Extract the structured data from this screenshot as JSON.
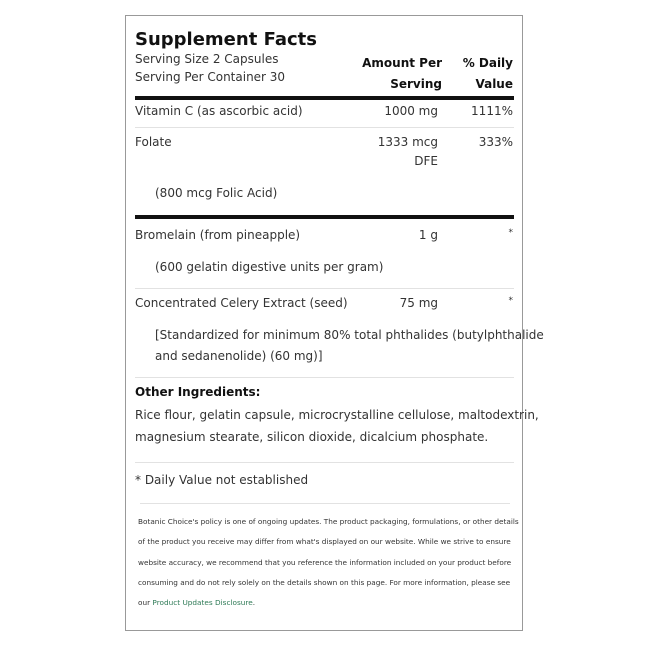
{
  "title": "Supplement Facts",
  "serving_size": "Serving Size 2 Capsules",
  "servings_per_container": "Serving Per Container 30",
  "col_amount": [
    "Amount Per",
    "Serving"
  ],
  "col_dv": [
    "% Daily",
    "Value"
  ],
  "rows": [
    {
      "name": "Vitamin C (as ascorbic acid)",
      "amount": "1000 mg",
      "dv": "1111%"
    },
    {
      "name": "Folate",
      "amount": "1333 mcg",
      "amount2": "DFE",
      "dv": "333%",
      "sub": "(800 mcg Folic Acid)"
    },
    {
      "name": "Bromelain (from pineapple)",
      "amount": "1 g",
      "dv": "*",
      "sub": "(600 gelatin digestive units per gram)"
    },
    {
      "name": "Concentrated Celery Extract (seed)",
      "amount": "75 mg",
      "dv": "*",
      "sub": "[Standardized for minimum 80% total phthalides (butylphthalide",
      "sub2": "and sedanenolide) (60 mg)]"
    }
  ],
  "other_heading": "Other Ingredients:",
  "other_lines": [
    "Rice flour, gelatin capsule, microcrystalline cellulose, maltodextrin,",
    "magnesium stearate, silicon dioxide, dicalcium phosphate."
  ],
  "footnote": "* Daily Value not established",
  "disclaimer": [
    "Botanic Choice's policy is one of ongoing updates. The product packaging, formulations, or other details",
    "of the product you receive may differ from what's displayed on our website. While we strive to ensure",
    "website accuracy, we recommend that you reference the information included on your product before",
    "consuming and do not rely solely on the details shown on this page. For more information, please see",
    "our "
  ],
  "disclaimer_link": "Product Updates Disclosure",
  "disclaimer_end": ".",
  "link_color": "#2e7a56"
}
